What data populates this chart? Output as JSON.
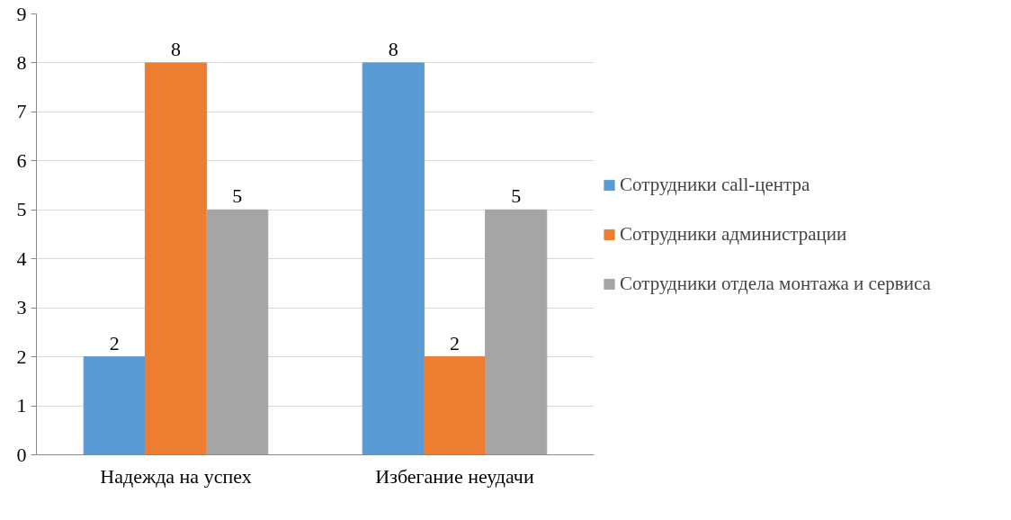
{
  "chart_data": {
    "type": "bar",
    "categories": [
      "Надежда на успех",
      "Избегание неудачи"
    ],
    "series": [
      {
        "name": "Сотрудники call-центра",
        "color": "#5b9bd5",
        "values": [
          2,
          8
        ]
      },
      {
        "name": "Сотрудники администрации",
        "color": "#ed7d31",
        "values": [
          8,
          2
        ]
      },
      {
        "name": "Сотрудники отдела монтажа и сервиса",
        "color": "#a5a5a5",
        "values": [
          5,
          5
        ]
      }
    ],
    "ylim": [
      0,
      9
    ],
    "yticks": [
      0,
      1,
      2,
      3,
      4,
      5,
      6,
      7,
      8,
      9
    ],
    "grid": "y",
    "legend": "right",
    "data_labels": true
  }
}
